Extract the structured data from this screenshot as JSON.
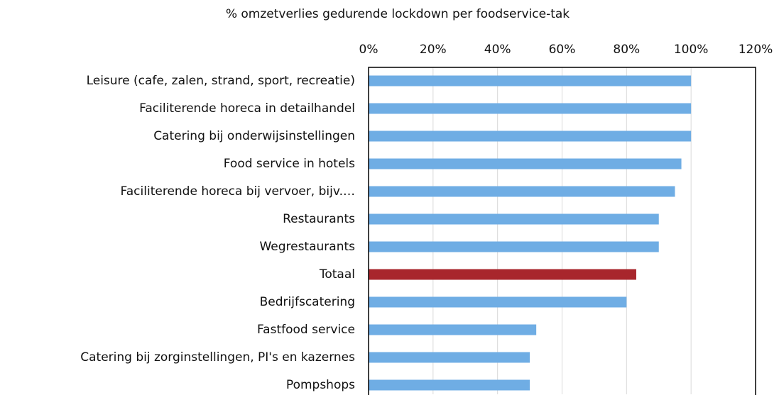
{
  "chart_data": {
    "type": "bar",
    "orientation": "horizontal",
    "title": "% omzetverlies gedurende lockdown per foodservice-tak",
    "categories": [
      "Leisure (cafe, zalen, strand, sport, recreatie)",
      "Faciliterende horeca in detailhandel",
      "Catering bij onderwijsinstellingen",
      "Food service in hotels",
      "Faciliterende horeca bij vervoer, bijv.…",
      "Restaurants",
      "Wegrestaurants",
      "Totaal",
      "Bedrijfscatering",
      "Fastfood service",
      "Catering bij zorginstellingen, PI's en kazernes",
      "Pompshops"
    ],
    "values": [
      100,
      100,
      100,
      97,
      95,
      90,
      90,
      83,
      80,
      52,
      50,
      50
    ],
    "colors": [
      "#6fade4",
      "#6fade4",
      "#6fade4",
      "#6fade4",
      "#6fade4",
      "#6fade4",
      "#6fade4",
      "#a8262c",
      "#6fade4",
      "#6fade4",
      "#6fade4",
      "#6fade4"
    ],
    "xlim": [
      0,
      120
    ],
    "xticks": [
      {
        "value": 0,
        "label": "0%"
      },
      {
        "value": 20,
        "label": "20%"
      },
      {
        "value": 40,
        "label": "40%"
      },
      {
        "value": 60,
        "label": "60%"
      },
      {
        "value": 80,
        "label": "80%"
      },
      {
        "value": 100,
        "label": "100%"
      },
      {
        "value": 120,
        "label": "120%"
      }
    ],
    "grid": true
  }
}
